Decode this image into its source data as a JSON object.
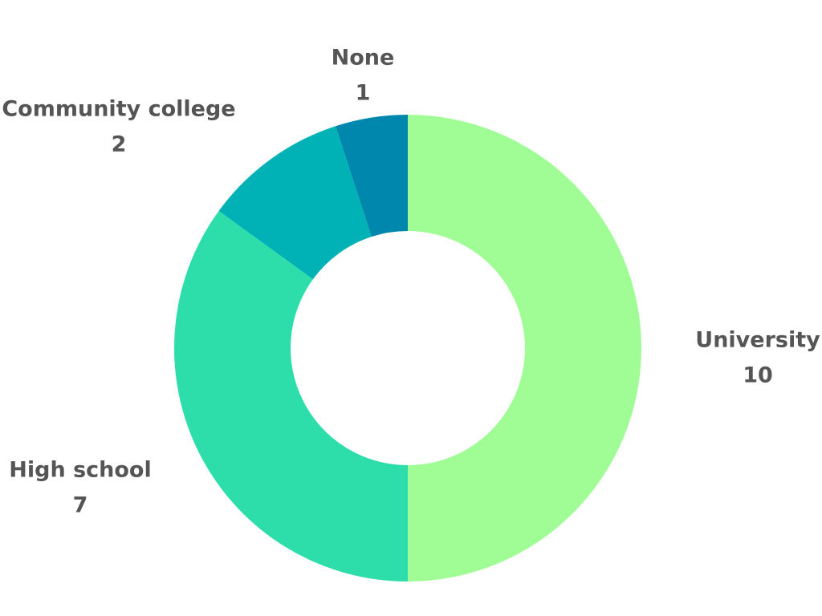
{
  "chart_data": {
    "type": "pie",
    "variant": "donut",
    "title": "",
    "legend": "none",
    "slices": [
      {
        "label": "University",
        "value": 10,
        "color": "#a0fd96"
      },
      {
        "label": "High school",
        "value": 7,
        "color": "#2ede aa"
      },
      {
        "label": "Community college",
        "value": 2,
        "color": "#00b2b5"
      },
      {
        "label": "None",
        "value": 1,
        "color": "#0087ad"
      }
    ]
  }
}
